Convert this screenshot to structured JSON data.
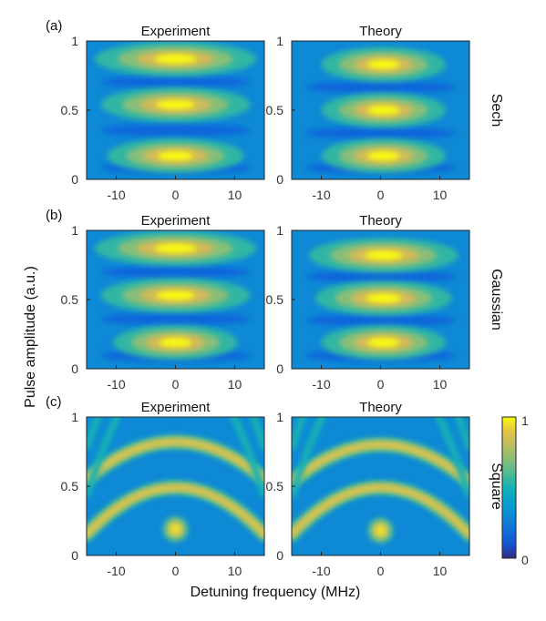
{
  "chart_data": {
    "type": "heatmap",
    "xlabel": "Detuning frequency (MHz)",
    "ylabel": "Pulse  amplitude  (a.u.)",
    "xlim": [
      -15,
      15
    ],
    "ylim": [
      0,
      1
    ],
    "xticks": [
      "-10",
      "0",
      "10"
    ],
    "yticks": [
      "0",
      "0.5",
      "1"
    ],
    "colorbar": {
      "min": 0,
      "max": 1,
      "min_label": "0",
      "max_label": "1",
      "colormap": "parula"
    },
    "column_titles": [
      "Experiment",
      "Theory"
    ],
    "rows": [
      {
        "label": "(a)",
        "pulse": "Sech",
        "panels": [
          {
            "title": "Experiment",
            "peaks": [
              {
                "x": 0,
                "y": 0.17,
                "width": 5.5,
                "height": 0.06
              },
              {
                "x": 0,
                "y": 0.54,
                "width": 6.0,
                "height": 0.06
              },
              {
                "x": 0,
                "y": 0.87,
                "width": 6.5,
                "height": 0.06
              }
            ]
          },
          {
            "title": "Theory",
            "peaks": [
              {
                "x": 0.5,
                "y": 0.17,
                "width": 5.0,
                "height": 0.06
              },
              {
                "x": 0.5,
                "y": 0.5,
                "width": 5.0,
                "height": 0.06
              },
              {
                "x": 0.5,
                "y": 0.83,
                "width": 5.0,
                "height": 0.06
              }
            ]
          }
        ]
      },
      {
        "label": "(b)",
        "pulse": "Gaussian",
        "panels": [
          {
            "title": "Experiment",
            "peaks": [
              {
                "x": 0,
                "y": 0.19,
                "width": 5.0,
                "height": 0.06
              },
              {
                "x": 0,
                "y": 0.53,
                "width": 6.0,
                "height": 0.06
              },
              {
                "x": 0,
                "y": 0.87,
                "width": 6.5,
                "height": 0.06
              }
            ]
          },
          {
            "title": "Theory",
            "peaks": [
              {
                "x": 0.5,
                "y": 0.19,
                "width": 5.0,
                "height": 0.06
              },
              {
                "x": 0.5,
                "y": 0.51,
                "width": 5.5,
                "height": 0.06
              },
              {
                "x": 0.5,
                "y": 0.82,
                "width": 6.0,
                "height": 0.06
              }
            ]
          }
        ]
      },
      {
        "label": "(c)",
        "pulse": "Square",
        "panels": [
          {
            "title": "Experiment",
            "arcs": [
              {
                "y": 0.19,
                "a": 0.0
              },
              {
                "y": 0.49,
                "a": 0.0015
              },
              {
                "y": 0.82,
                "a": 0.0012
              }
            ]
          },
          {
            "title": "Theory",
            "arcs": [
              {
                "y": 0.18,
                "a": 0.0
              },
              {
                "y": 0.49,
                "a": 0.0015
              },
              {
                "y": 0.8,
                "a": 0.0012
              }
            ]
          }
        ]
      }
    ]
  }
}
